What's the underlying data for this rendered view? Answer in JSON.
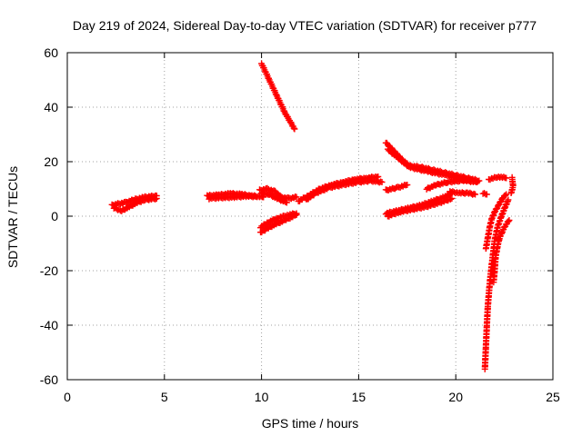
{
  "chart_data": {
    "type": "scatter",
    "title": "Day 219 of 2024, Sidereal Day-to-day VTEC variation (SDTVAR) for receiver p777",
    "xlabel": "GPS time / hours",
    "ylabel": "SDTVAR / TECUs",
    "xlim": [
      0,
      25
    ],
    "ylim": [
      -60,
      60
    ],
    "xticks": [
      0,
      5,
      10,
      15,
      20,
      25
    ],
    "yticks": [
      -60,
      -40,
      -20,
      0,
      20,
      40,
      60
    ],
    "grid": true,
    "marker": "plus",
    "color": "#ff0000",
    "segments": [
      {
        "points": [
          [
            2.3,
            4.0
          ],
          [
            2.6,
            4.5
          ],
          [
            3.0,
            5.0
          ],
          [
            3.5,
            6.2
          ],
          [
            4.0,
            7.0
          ],
          [
            4.6,
            7.5
          ]
        ]
      },
      {
        "points": [
          [
            2.4,
            3.0
          ],
          [
            2.8,
            2.0
          ],
          [
            3.2,
            3.5
          ],
          [
            3.6,
            5.0
          ],
          [
            4.0,
            6.0
          ],
          [
            4.6,
            6.5
          ]
        ]
      },
      {
        "points": [
          [
            7.2,
            7.5
          ],
          [
            7.8,
            7.8
          ],
          [
            8.4,
            8.3
          ],
          [
            9.0,
            8.0
          ],
          [
            9.5,
            7.5
          ],
          [
            10.1,
            7.0
          ]
        ]
      },
      {
        "points": [
          [
            7.3,
            6.5
          ],
          [
            8.0,
            6.8
          ],
          [
            8.6,
            7.0
          ],
          [
            9.2,
            7.3
          ],
          [
            9.7,
            7.2
          ]
        ]
      },
      {
        "points": [
          [
            10.0,
            56.0
          ],
          [
            10.4,
            50.0
          ],
          [
            10.8,
            44.0
          ],
          [
            11.2,
            38.0
          ],
          [
            11.7,
            32.0
          ]
        ]
      },
      {
        "points": [
          [
            9.9,
            9.5
          ],
          [
            10.3,
            10.0
          ],
          [
            10.7,
            9.0
          ],
          [
            11.0,
            7.0
          ],
          [
            11.4,
            6.5
          ],
          [
            11.8,
            7.0
          ]
        ]
      },
      {
        "points": [
          [
            10.0,
            8.5
          ],
          [
            10.4,
            8.0
          ],
          [
            10.8,
            6.5
          ],
          [
            11.3,
            5.0
          ]
        ]
      },
      {
        "points": [
          [
            9.95,
            -6.0
          ],
          [
            10.3,
            -4.5
          ],
          [
            10.7,
            -3.0
          ],
          [
            11.2,
            -1.5
          ],
          [
            11.8,
            0.5
          ]
        ]
      },
      {
        "points": [
          [
            9.95,
            -4.0
          ],
          [
            10.4,
            -2.0
          ],
          [
            10.9,
            -0.5
          ],
          [
            11.4,
            0.5
          ],
          [
            11.8,
            1.0
          ]
        ]
      },
      {
        "points": [
          [
            11.9,
            5.5
          ],
          [
            12.4,
            7.5
          ],
          [
            13.0,
            10.0
          ],
          [
            13.6,
            11.5
          ],
          [
            14.2,
            12.5
          ],
          [
            14.8,
            13.5
          ],
          [
            15.4,
            14.0
          ],
          [
            16.0,
            14.5
          ]
        ]
      },
      {
        "points": [
          [
            12.3,
            6.0
          ],
          [
            12.8,
            8.5
          ],
          [
            13.5,
            10.5
          ],
          [
            14.2,
            11.5
          ],
          [
            15.0,
            12.5
          ],
          [
            15.6,
            13.0
          ],
          [
            16.2,
            12.5
          ]
        ]
      },
      {
        "points": [
          [
            16.4,
            27.0
          ],
          [
            16.8,
            24.0
          ],
          [
            17.2,
            21.0
          ],
          [
            17.6,
            18.5
          ],
          [
            18.2,
            18.0
          ],
          [
            18.8,
            17.0
          ],
          [
            19.4,
            16.0
          ],
          [
            20.0,
            15.0
          ],
          [
            20.6,
            14.0
          ],
          [
            21.2,
            13.0
          ]
        ]
      },
      {
        "points": [
          [
            16.5,
            24.5
          ],
          [
            17.0,
            21.5
          ],
          [
            17.6,
            18.0
          ],
          [
            18.5,
            16.5
          ],
          [
            19.5,
            15.0
          ],
          [
            20.5,
            13.0
          ],
          [
            21.1,
            12.5
          ]
        ]
      },
      {
        "points": [
          [
            16.4,
            1.0
          ],
          [
            17.0,
            2.0
          ],
          [
            17.6,
            3.0
          ],
          [
            18.2,
            4.0
          ],
          [
            18.8,
            5.5
          ],
          [
            19.4,
            7.0
          ],
          [
            19.8,
            8.5
          ]
        ]
      },
      {
        "points": [
          [
            16.5,
            0.0
          ],
          [
            17.1,
            1.5
          ],
          [
            17.8,
            2.5
          ],
          [
            18.5,
            3.5
          ],
          [
            19.2,
            5.0
          ],
          [
            19.8,
            6.5
          ]
        ]
      },
      {
        "points": [
          [
            16.4,
            9.5
          ],
          [
            17.0,
            10.5
          ],
          [
            17.5,
            11.5
          ]
        ]
      },
      {
        "points": [
          [
            18.5,
            10.0
          ],
          [
            19.0,
            11.5
          ],
          [
            19.6,
            12.5
          ],
          [
            20.2,
            13.0
          ],
          [
            20.8,
            13.5
          ]
        ]
      },
      {
        "points": [
          [
            19.7,
            9.0
          ],
          [
            20.2,
            8.5
          ],
          [
            20.6,
            8.5
          ],
          [
            21.0,
            8.0
          ]
        ]
      },
      {
        "points": [
          [
            21.4,
            8.5
          ],
          [
            21.6,
            8.0
          ]
        ]
      },
      {
        "points": [
          [
            21.7,
            13.5
          ],
          [
            22.2,
            14.5
          ],
          [
            22.6,
            14.0
          ]
        ]
      },
      {
        "points": [
          [
            22.9,
            14.0
          ],
          [
            22.95,
            11.0
          ],
          [
            22.85,
            8.5
          ]
        ]
      },
      {
        "points": [
          [
            21.5,
            -56.0
          ],
          [
            21.55,
            -48.0
          ],
          [
            21.6,
            -40.0
          ],
          [
            21.65,
            -33.0
          ],
          [
            21.72,
            -27.0
          ],
          [
            21.8,
            -21.0
          ],
          [
            21.9,
            -15.0
          ],
          [
            22.0,
            -9.0
          ],
          [
            22.15,
            -4.0
          ],
          [
            22.35,
            0.0
          ],
          [
            22.55,
            3.5
          ],
          [
            22.7,
            6.0
          ]
        ]
      },
      {
        "points": [
          [
            21.55,
            -12.0
          ],
          [
            21.65,
            -8.0
          ],
          [
            21.75,
            -4.0
          ],
          [
            21.85,
            -1.0
          ],
          [
            22.0,
            1.5
          ],
          [
            22.2,
            4.0
          ],
          [
            22.4,
            6.5
          ],
          [
            22.6,
            8.0
          ]
        ]
      },
      {
        "points": [
          [
            21.95,
            -24.0
          ],
          [
            22.0,
            -20.0
          ],
          [
            22.05,
            -15.0
          ],
          [
            22.15,
            -11.0
          ],
          [
            22.25,
            -8.0
          ],
          [
            22.4,
            -5.5
          ],
          [
            22.55,
            -3.5
          ],
          [
            22.75,
            -1.5
          ]
        ]
      }
    ]
  }
}
